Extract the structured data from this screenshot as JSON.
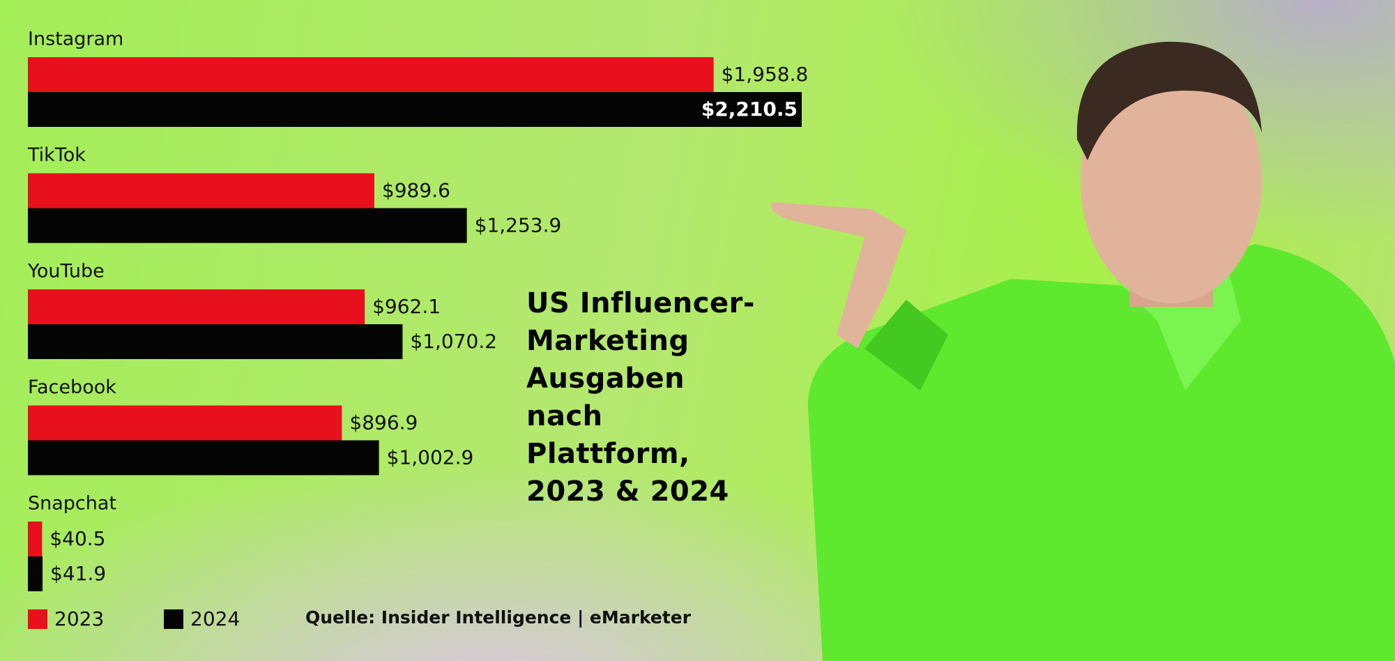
{
  "chart_data": {
    "type": "bar",
    "orientation": "horizontal",
    "title": [
      "US Influencer-",
      "Marketing",
      "Ausgaben",
      "nach",
      "Plattform,",
      "2023 & 2024"
    ],
    "categories": [
      "Instagram",
      "TikTok",
      "YouTube",
      "Facebook",
      "Snapchat"
    ],
    "series": [
      {
        "name": "2023",
        "color": "#e8101c",
        "values": [
          1958.8,
          989.6,
          962.1,
          896.9,
          40.5
        ],
        "value_labels": [
          "$1,958.8",
          "$989.6",
          "$962.1",
          "$896.9",
          "$40.5"
        ]
      },
      {
        "name": "2024",
        "color": "#050505",
        "values": [
          2210.5,
          1253.9,
          1070.2,
          1002.9,
          41.9
        ],
        "value_labels": [
          "$2,210.5",
          "$1,253.9",
          "$1,070.2",
          "$1,002.9",
          "$41.9"
        ]
      }
    ],
    "source": "Quelle: Insider Intelligence | eMarketer"
  }
}
